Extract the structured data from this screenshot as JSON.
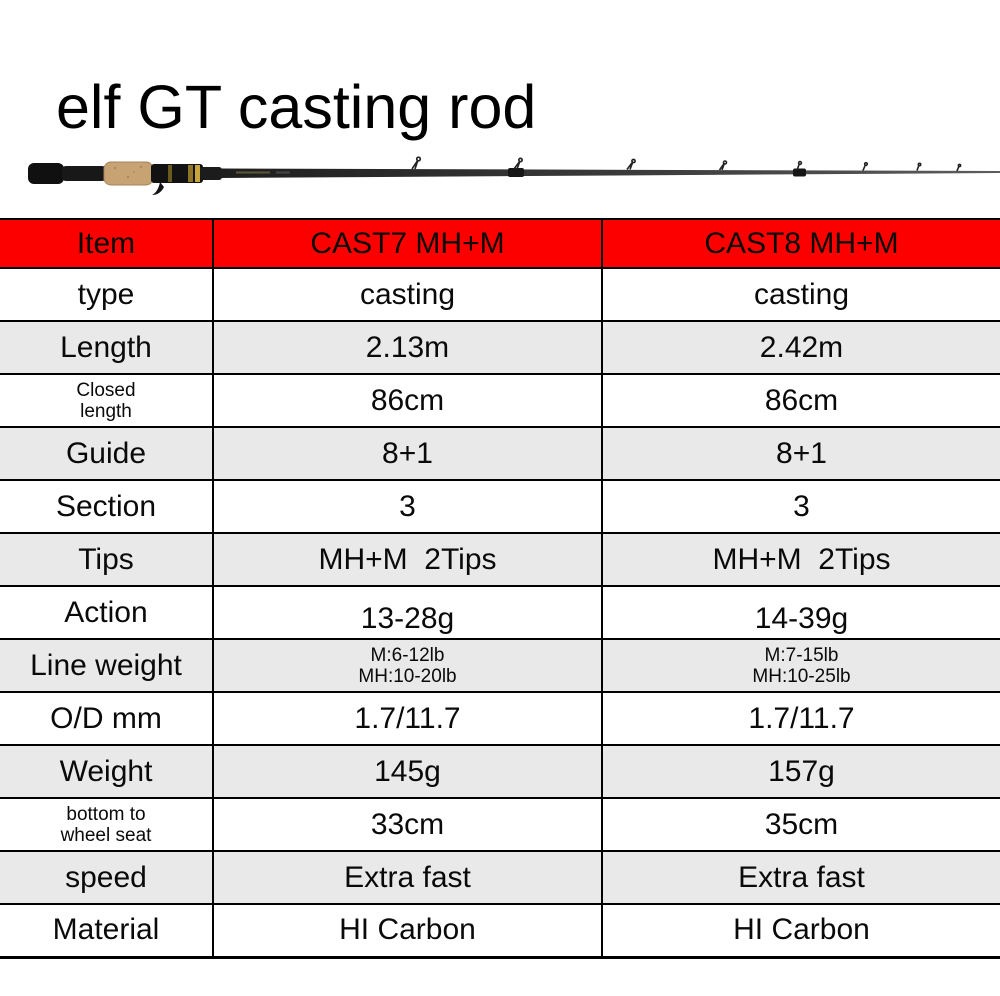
{
  "title": "elf GT casting rod",
  "colors": {
    "header_bg": "#fc0000",
    "shaded_row_bg": "#e9e9e9",
    "border": "#000000",
    "cork": "#c7a272",
    "reel_seat_gold": "#c8a43c"
  },
  "rod_image": {
    "alt": "casting rod with black butt grip, cork handle, trigger reel seat and tapered blank with line guides"
  },
  "table": {
    "header": {
      "item": "Item",
      "cast7": "CAST7 MH+M",
      "cast8": "CAST8 MH+M"
    },
    "rows": [
      {
        "label": [
          "type"
        ],
        "c1": [
          "casting"
        ],
        "c2": [
          "casting"
        ],
        "shaded": false
      },
      {
        "label": [
          "Length"
        ],
        "c1": [
          "2.13m"
        ],
        "c2": [
          "2.42m"
        ],
        "shaded": true
      },
      {
        "label": [
          "Closed",
          "length"
        ],
        "label_small": true,
        "c1": [
          "86cm"
        ],
        "c2": [
          "86cm"
        ],
        "shaded": false
      },
      {
        "label": [
          "Guide"
        ],
        "c1": [
          "8+1"
        ],
        "c2": [
          "8+1"
        ],
        "shaded": true
      },
      {
        "label": [
          "Section"
        ],
        "c1": [
          "3"
        ],
        "c2": [
          "3"
        ],
        "shaded": false
      },
      {
        "label": [
          "Tips"
        ],
        "c1": [
          "MH+M  2Tips"
        ],
        "c2": [
          "MH+M  2Tips"
        ],
        "shaded": true
      },
      {
        "label": [
          "Action"
        ],
        "c1": [
          "13-28g"
        ],
        "c2": [
          "14-39g"
        ],
        "shaded": false,
        "value_drop": true
      },
      {
        "label": [
          "Line weight"
        ],
        "c1": [
          "M:6-12lb",
          "MH:10-20lb"
        ],
        "c2": [
          "M:7-15lb",
          "MH:10-25lb"
        ],
        "values_small": true,
        "shaded": true
      },
      {
        "label": [
          "O/D mm"
        ],
        "c1": [
          "1.7/11.7"
        ],
        "c2": [
          "1.7/11.7"
        ],
        "shaded": false
      },
      {
        "label": [
          "Weight"
        ],
        "c1": [
          "145g"
        ],
        "c2": [
          "157g"
        ],
        "shaded": true
      },
      {
        "label": [
          "bottom to",
          "wheel seat"
        ],
        "label_small": true,
        "c1": [
          "33cm"
        ],
        "c2": [
          "35cm"
        ],
        "shaded": false
      },
      {
        "label": [
          "speed"
        ],
        "c1": [
          "Extra fast"
        ],
        "c2": [
          "Extra fast"
        ],
        "shaded": true
      },
      {
        "label": [
          "Material"
        ],
        "c1": [
          "HI Carbon"
        ],
        "c2": [
          "HI Carbon"
        ],
        "shaded": false
      }
    ]
  }
}
